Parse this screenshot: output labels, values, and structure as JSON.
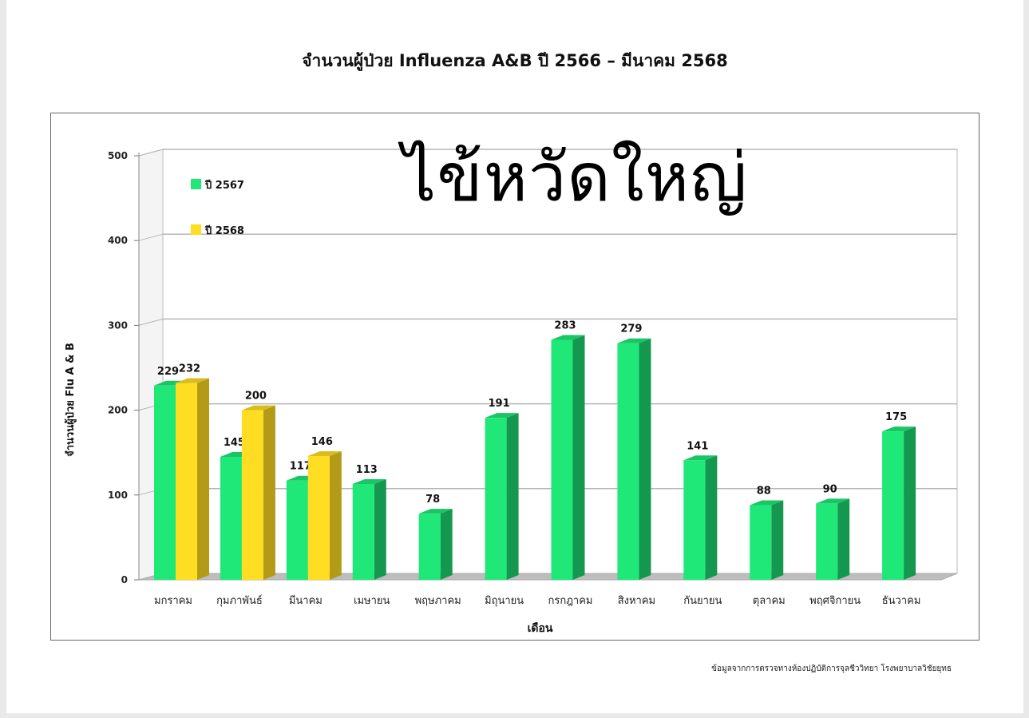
{
  "page": {
    "title": "จำนวนผู้ป่วย Influenza A&B ปี 2566 – มีนาคม 2568",
    "overlay_text": "ไข้หวัดใหญ่",
    "footnote": "ข้อมูลจากการตรวจทางห้องปฏิบัติการจุลชีววิทยา โรงพยาบาลวิชัยยุทธ"
  },
  "chart_data": {
    "type": "bar",
    "title": "จำนวนผู้ป่วย Influenza A&B ปี 2566 – มีนาคม 2568",
    "xlabel": "เดือน",
    "ylabel": "จำนวนผู้ป่วย Flu A & B",
    "ylim": [
      0,
      500
    ],
    "yticks": [
      0,
      100,
      200,
      300,
      400,
      500
    ],
    "grid": true,
    "legend_position": "top-left",
    "categories": [
      "มกราคม",
      "กุมภาพันธ์",
      "มีนาคม",
      "เมษายน",
      "พฤษภาคม",
      "มิถุนายน",
      "กรกฎาคม",
      "สิงหาคม",
      "กันยายน",
      "ตุลาคม",
      "พฤศจิกายน",
      "ธันวาคม"
    ],
    "series": [
      {
        "name": "ปี 2567",
        "color": "#1fe878",
        "values": [
          229,
          145,
          117,
          113,
          78,
          191,
          283,
          279,
          141,
          88,
          90,
          175
        ]
      },
      {
        "name": "ปี 2568",
        "color": "#ffdd22",
        "values": [
          232,
          200,
          146,
          null,
          null,
          null,
          null,
          null,
          null,
          null,
          null,
          null
        ]
      }
    ]
  }
}
